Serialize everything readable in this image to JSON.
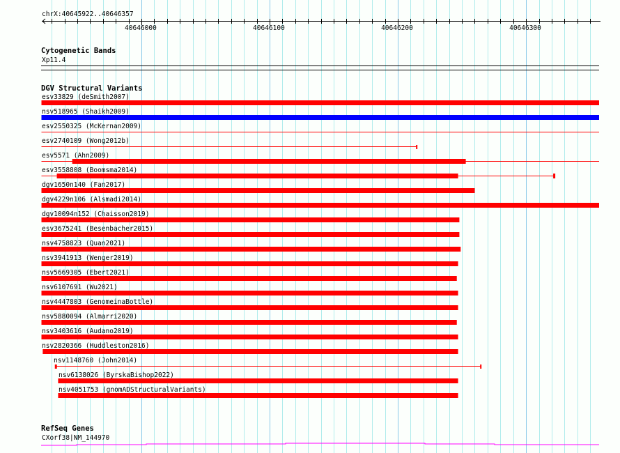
{
  "ruler": {
    "location": "chrX:40645922..40646357",
    "start": 40645922,
    "end": 40646357,
    "tick_labels": [
      "40646000",
      "40646100",
      "40646200",
      "40646300"
    ]
  },
  "cyto": {
    "title": "Cytogenetic Bands",
    "band": "Xp11.4"
  },
  "dgv": {
    "title": "DGV Structural Variants",
    "colors": {
      "loss": "#ff0000",
      "gain": "#0000ff"
    },
    "items": [
      {
        "label": "esv33829 (deSmith2007)",
        "color": "#ff0000",
        "thin": [
          40645922,
          40646357
        ],
        "thick": [
          40645922,
          40646357
        ]
      },
      {
        "label": "nsv518965 (Shaikh2009)",
        "color": "#0000ff",
        "thin": [
          40645922,
          40646357
        ],
        "thick": [
          40645922,
          40646357
        ]
      },
      {
        "label": "esv2550325 (McKernan2009)",
        "color": "#ff0000",
        "thin": [
          40645922,
          40646357
        ],
        "thick": null
      },
      {
        "label": "esv2740109 (Wong2012b)",
        "color": "#ff0000",
        "thin": [
          40645922,
          40646215
        ],
        "thick": null,
        "capEnd": true
      },
      {
        "label": "esv5571 (Ahn2009)",
        "color": "#ff0000",
        "thin": [
          40645922,
          40646357
        ],
        "thick": [
          40645946,
          40646253
        ]
      },
      {
        "label": "esv3558808 (Boomsma2014)",
        "color": "#ff0000",
        "thin": [
          40645922,
          40646322
        ],
        "thick": [
          40645934,
          40646247
        ],
        "capEnd": true
      },
      {
        "label": "dgv1650n140 (Fan2017)",
        "color": "#ff0000",
        "thin": null,
        "thick": [
          40645922,
          40646260
        ]
      },
      {
        "label": "dgv4229n106 (Alsmadi2014)",
        "color": "#ff0000",
        "thin": null,
        "thick": [
          40645922,
          40646357
        ]
      },
      {
        "label": "dgv10094n152 (Chaisson2019)",
        "color": "#ff0000",
        "thin": null,
        "thick": [
          40645922,
          40646248
        ]
      },
      {
        "label": "esv3675241 (Besenbacher2015)",
        "color": "#ff0000",
        "thin": null,
        "thick": [
          40645922,
          40646248
        ]
      },
      {
        "label": "nsv4758823 (Quan2021)",
        "color": "#ff0000",
        "thin": null,
        "thick": [
          40645922,
          40646249
        ]
      },
      {
        "label": "nsv3941913 (Wenger2019)",
        "color": "#ff0000",
        "thin": null,
        "thick": [
          40645922,
          40646247
        ]
      },
      {
        "label": "nsv5669305 (Ebert2021)",
        "color": "#ff0000",
        "thin": null,
        "thick": [
          40645922,
          40646246
        ]
      },
      {
        "label": "nsv6107691 (Wu2021)",
        "color": "#ff0000",
        "thin": null,
        "thick": [
          40645922,
          40646247
        ]
      },
      {
        "label": "nsv4447803 (GenomeinaBottle)",
        "color": "#ff0000",
        "thin": null,
        "thick": [
          40645922,
          40646247
        ]
      },
      {
        "label": "nsv5880094 (Almarri2020)",
        "color": "#ff0000",
        "thin": null,
        "thick": [
          40645922,
          40646246
        ]
      },
      {
        "label": "nsv3403616 (Audano2019)",
        "color": "#ff0000",
        "thin": null,
        "thick": [
          40645922,
          40646247
        ]
      },
      {
        "label": "nsv2820366 (Huddleston2016)",
        "color": "#ff0000",
        "thin": null,
        "thick": [
          40645923,
          40646247
        ]
      },
      {
        "label": "nsv1148760 (John2014)",
        "color": "#ff0000",
        "thin": [
          40645933,
          40646265
        ],
        "thick": null,
        "capStart": true,
        "capEnd": true
      },
      {
        "label": "nsv6138026 (ByrskaBishop2022)",
        "color": "#ff0000",
        "thin": null,
        "thick": [
          40645935,
          40646247
        ]
      },
      {
        "label": "nsv4051753 (gnomADStructuralVariants)",
        "color": "#ff0000",
        "thin": null,
        "thick": [
          40645935,
          40646247
        ]
      }
    ]
  },
  "refseq": {
    "title": "RefSeq Genes",
    "gene": "CXorf38|NM_144970",
    "color": "#ff00ff"
  }
}
